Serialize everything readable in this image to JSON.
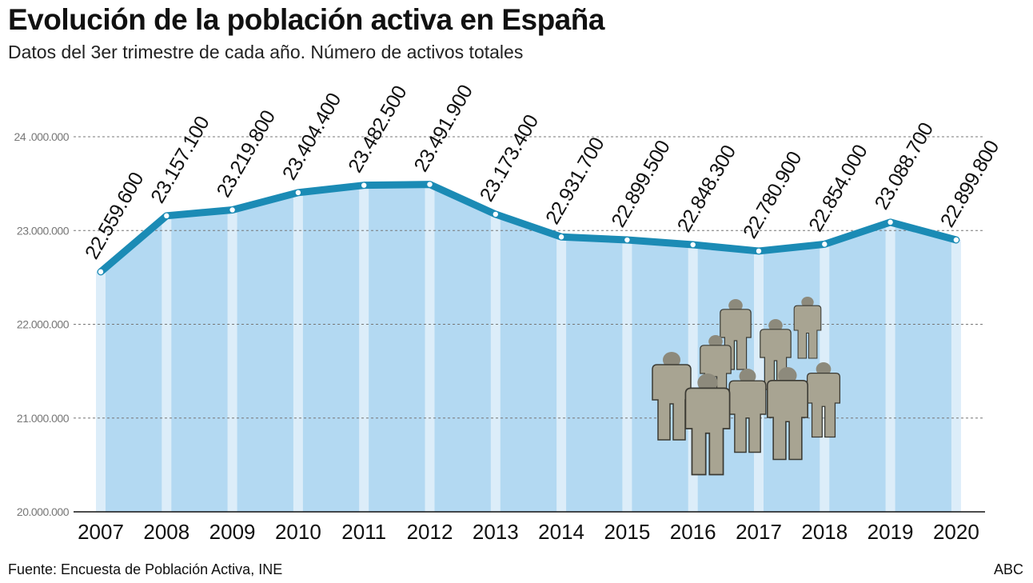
{
  "title": "Evolución de la población activa en España",
  "subtitle": "Datos del 3er trimestre de cada año. Número de activos totales",
  "source": "Fuente: Encuesta de Población Activa, INE",
  "brand": "ABC",
  "chart_data": {
    "type": "area",
    "categories": [
      "2007",
      "2008",
      "2009",
      "2010",
      "2011",
      "2012",
      "2013",
      "2014",
      "2015",
      "2016",
      "2017",
      "2018",
      "2019",
      "2020"
    ],
    "values": [
      22559600,
      23157100,
      23219800,
      23404400,
      23482500,
      23491900,
      23173400,
      22931700,
      22899500,
      22848300,
      22780900,
      22854000,
      23088700,
      22899800
    ],
    "data_labels": [
      "22.559.600",
      "23.157.100",
      "23.219.800",
      "23.404.400",
      "23.482.500",
      "23.491.900",
      "23.173.400",
      "22.931.700",
      "22.899.500",
      "22.848.300",
      "22.780.900",
      "22.854.000",
      "23.088.700",
      "22.899.800"
    ],
    "yticks": [
      20000000,
      21000000,
      22000000,
      23000000,
      24000000
    ],
    "ytick_labels": [
      "20.000.000",
      "21.000.000",
      "22.000.000",
      "23.000.000",
      "24 .000.000"
    ],
    "ylim": [
      20000000,
      24000000
    ],
    "grid": "horizontal dashed",
    "colors": {
      "line": "#1b8bb5",
      "fill": "#b3d9f2",
      "stripe": "#dcedf9",
      "marker": "#ffffff"
    },
    "illustration": "people-group-icon"
  }
}
